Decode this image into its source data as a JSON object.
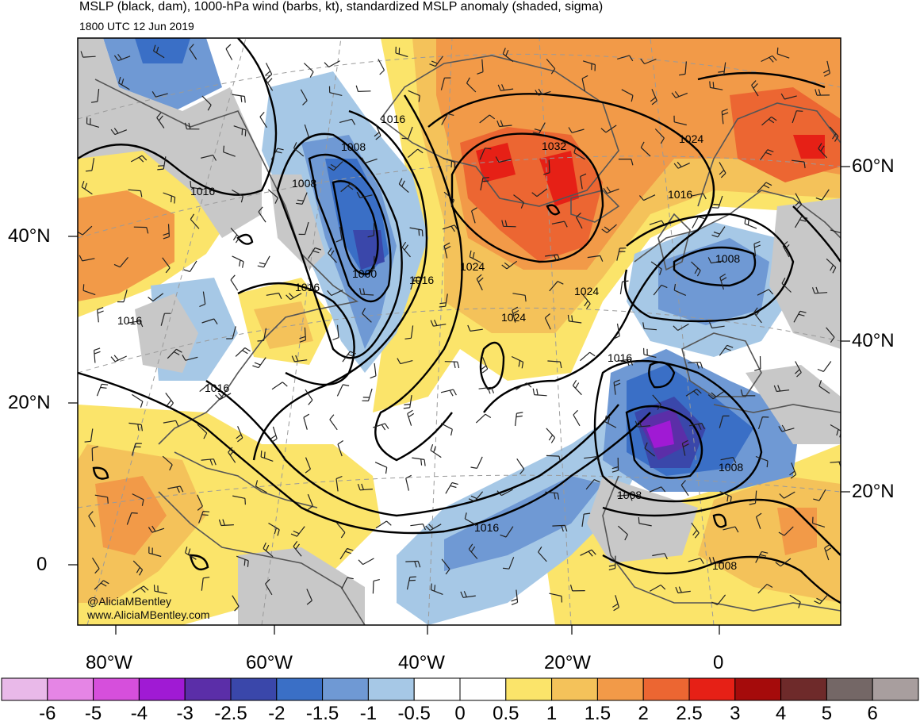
{
  "title": "MSLP (black, dam), 1000-hPa wind (barbs, kt), standardized MSLP anomaly (shaded, sigma)",
  "valid_time": "1800 UTC 12 Jun 2019",
  "credit": {
    "handle": "@AliciaMBentley",
    "website": "www.AliciaMBentley.com"
  },
  "lat_labels_left": [
    "40°N",
    "20°N",
    "0"
  ],
  "lat_labels_right": [
    "60°N",
    "40°N",
    "20°N"
  ],
  "lon_labels": [
    "80°W",
    "60°W",
    "40°W",
    "20°W",
    "0"
  ],
  "isobar_labels": [
    "1016",
    "1008",
    "1008",
    "1016",
    "1000",
    "1016",
    "1024",
    "1032",
    "1024",
    "1016",
    "1016",
    "1024",
    "1008",
    "1016",
    "1016",
    "1016",
    "1008",
    "1008",
    "1016",
    "1008"
  ],
  "colorbar": {
    "labels": [
      "-6",
      "-5",
      "-4",
      "-3",
      "-2.5",
      "-2",
      "-1.5",
      "-1",
      "-0.5",
      "0",
      "0.5",
      "1",
      "1.5",
      "2",
      "2.5",
      "3",
      "4",
      "5",
      "6"
    ],
    "colors": [
      "#e9b9e9",
      "#e585e5",
      "#d64fdc",
      "#a01ad4",
      "#5b2ea8",
      "#3a47aa",
      "#3a6fc6",
      "#6f99d4",
      "#a6c8e6",
      "#ffffff",
      "#ffffff",
      "#fbe46a",
      "#f4c25a",
      "#f29a48",
      "#ec6632",
      "#e62016",
      "#a50b0b",
      "#6e2a2a",
      "#746766",
      "#a89e9e"
    ]
  },
  "colors": {
    "land_gray": "#c8c8c8",
    "coast": "#555555",
    "isobar": "#000000"
  }
}
